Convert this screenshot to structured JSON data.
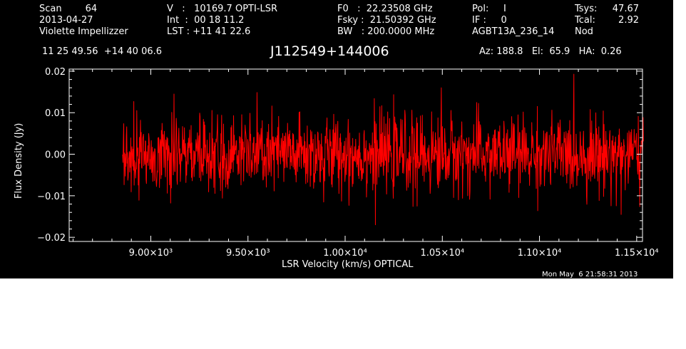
{
  "header": {
    "col1": [
      "Scan        64",
      "2013-04-27",
      "Violette Impellizzer"
    ],
    "col2": [
      "V   :   10169.7 OPTI-LSR",
      "Int  :  00 18 11.2",
      "LST : +11 41 22.6"
    ],
    "col3": [
      "F0   :  22.23508 GHz",
      "Fsky :  21.50392 GHz",
      "BW   : 200.0000 MHz"
    ],
    "col4": [
      "Pol:     I",
      "IF :     0",
      "AGBT13A_236_14"
    ],
    "col5_labels": [
      "Tsys:",
      "Tcal:",
      "Nod"
    ],
    "col5_values": [
      "47.67",
      "2.92",
      ""
    ],
    "coords": "11 25 49.56  +14 40 06.6",
    "source": "J112549+144006",
    "az_el_ha": "Az: 188.8   El:  65.9   HA:  0.26"
  },
  "footer": {
    "timestamp": "Mon May  6 21:58:31 2013"
  },
  "colors": {
    "background": "#000000",
    "axes": "#ffffff",
    "trace": "#ff0000"
  },
  "chart_data": {
    "type": "line",
    "title": "J112549+144006",
    "xlabel": "LSR Velocity (km/s) OPTICAL",
    "ylabel": "Flux Density (Jy)",
    "xlim": [
      8580,
      11530
    ],
    "ylim": [
      -0.021,
      0.0205
    ],
    "x_ticks": [
      9000,
      9500,
      10000,
      10500,
      11000,
      11500
    ],
    "x_tick_labels": [
      "9.00×10³",
      "9.50×10³",
      "1.00×10⁴",
      "1.05×10⁴",
      "1.10×10⁴",
      "1.15×10⁴"
    ],
    "y_ticks": [
      -0.02,
      -0.01,
      0.0,
      0.01,
      0.02
    ],
    "y_tick_labels": [
      "−0.02",
      "−0.01",
      "0.00",
      "0.01",
      "0.02"
    ],
    "x_minor_step": 100,
    "y_minor_step": 0.002,
    "grid": false,
    "series": [
      {
        "x_start": 8855,
        "x_end": 11535,
        "n_points": 1400,
        "noise_rms": 0.0045,
        "mean": 0.0,
        "notable": [
          {
            "x": 9120,
            "y": 0.0145
          },
          {
            "x": 9890,
            "y": -0.0115
          },
          {
            "x": 10155,
            "y": -0.017
          },
          {
            "x": 10495,
            "y": 0.016
          },
          {
            "x": 10370,
            "y": -0.0125
          },
          {
            "x": 11420,
            "y": -0.0145
          }
        ]
      }
    ]
  }
}
